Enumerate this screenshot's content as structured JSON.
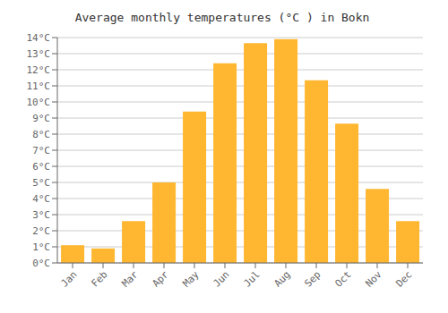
{
  "chart_data": {
    "type": "bar",
    "title": "Average monthly temperatures (°C ) in Bokn",
    "categories": [
      "Jan",
      "Feb",
      "Mar",
      "Apr",
      "May",
      "Jun",
      "Jul",
      "Aug",
      "Sep",
      "Oct",
      "Nov",
      "Dec"
    ],
    "values": [
      1.1,
      0.9,
      2.6,
      5.0,
      9.4,
      12.4,
      13.65,
      13.9,
      11.35,
      8.65,
      4.6,
      2.6
    ],
    "color": "#FFB732",
    "ylim": [
      0,
      14
    ],
    "yticks": [
      {
        "value": 0,
        "label": "0°C"
      },
      {
        "value": 1,
        "label": "1°C"
      },
      {
        "value": 2,
        "label": "2°C"
      },
      {
        "value": 3,
        "label": "3°C"
      },
      {
        "value": 4,
        "label": "4°C"
      },
      {
        "value": 5,
        "label": "5°C"
      },
      {
        "value": 6,
        "label": "6°C"
      },
      {
        "value": 7,
        "label": "7°C"
      },
      {
        "value": 8,
        "label": "8°C"
      },
      {
        "value": 9,
        "label": "9°C"
      },
      {
        "value": 10,
        "label": "10°C"
      },
      {
        "value": 11,
        "label": "11°C"
      },
      {
        "value": 12,
        "label": "12°C"
      },
      {
        "value": 13,
        "label": "13°C"
      },
      {
        "value": 14,
        "label": "14°C"
      }
    ],
    "grid": true
  }
}
